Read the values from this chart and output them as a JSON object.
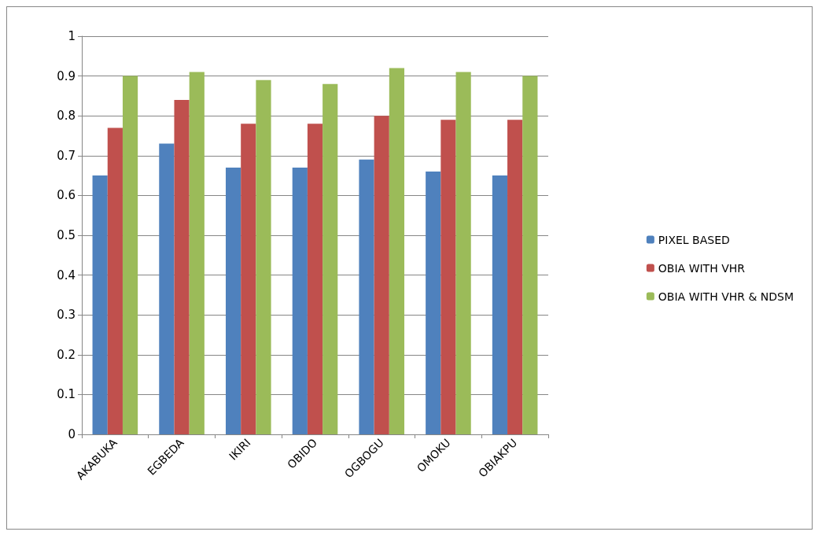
{
  "chart_data": {
    "type": "bar",
    "categories": [
      "AKABUKA",
      "EGBEDA",
      "IKIRI",
      "OBIDO",
      "OGBOGU",
      "OMOKU",
      "OBIAKPU"
    ],
    "series": [
      {
        "name": "PIXEL BASED",
        "color": "#4f81bd",
        "values": [
          0.65,
          0.73,
          0.67,
          0.67,
          0.69,
          0.66,
          0.65
        ]
      },
      {
        "name": "OBIA WITH VHR",
        "color": "#c0504d",
        "values": [
          0.77,
          0.84,
          0.78,
          0.78,
          0.8,
          0.79,
          0.79
        ]
      },
      {
        "name": "OBIA WITH VHR & NDSM",
        "color": "#9bbb59",
        "values": [
          0.9,
          0.91,
          0.89,
          0.88,
          0.92,
          0.91,
          0.9
        ]
      }
    ],
    "ylim": [
      0,
      1
    ],
    "yticks": [
      0,
      0.1,
      0.2,
      0.3,
      0.4,
      0.5,
      0.6,
      0.7,
      0.8,
      0.9,
      1
    ],
    "grid": "y",
    "legend": "right"
  }
}
